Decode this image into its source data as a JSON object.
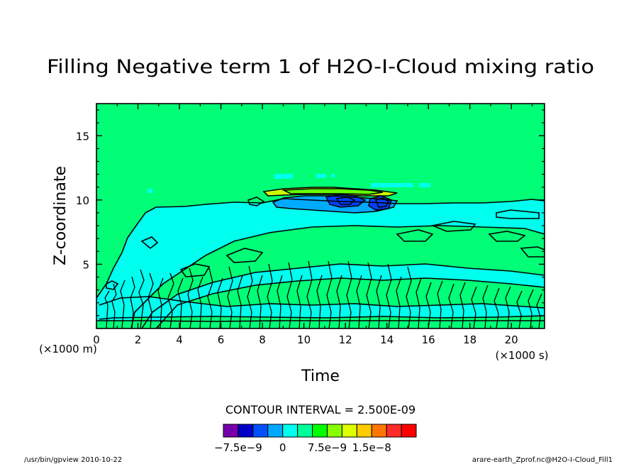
{
  "chart_data": {
    "type": "contour",
    "title": "Filling Negative term 1 of H2O-I-Cloud mixing ratio",
    "xlabel": "Time",
    "ylabel": "Z-coordinate",
    "x_unit_label": "(×1000 s)",
    "y_unit_label": "(×1000 m)",
    "xlim": [
      0,
      21.6
    ],
    "ylim": [
      0,
      17.5
    ],
    "x_ticks": [
      0,
      2,
      4,
      6,
      8,
      10,
      12,
      14,
      16,
      18,
      20
    ],
    "y_ticks": [
      5,
      10,
      15
    ],
    "contour_interval_text": "CONTOUR INTERVAL = 2.500E-09",
    "colorbar": {
      "colors": [
        "#7700aa",
        "#0000c8",
        "#0050ff",
        "#00a8ff",
        "#00ffee",
        "#00ff99",
        "#00ff00",
        "#88ff00",
        "#ddff00",
        "#ffcc00",
        "#ff7700",
        "#ff2a2a",
        "#ff0000"
      ],
      "tick_labels": [
        "−7.5e−9",
        "0",
        "7.5e−9",
        "1.5e−8"
      ],
      "tick_values": [
        -7.5e-09,
        0,
        7.5e-09,
        1.5e-08
      ]
    },
    "regions": [
      {
        "name": "background",
        "level": 0,
        "color": "#00ff77"
      },
      {
        "name": "negative-band",
        "level": -2.5e-09,
        "color": "#00ffee"
      },
      {
        "name": "negative-core",
        "level": -5e-09,
        "color": "#00aaff"
      },
      {
        "name": "strong-negative-core",
        "level": -7.5e-09,
        "color": "#0040ff"
      },
      {
        "name": "positive-cap",
        "level": 5e-09,
        "color": "#ccff00"
      }
    ]
  },
  "footer": {
    "left": "/usr/bin/gpview   2010-10-22",
    "right": "arare-earth_Zprof.nc@H2O-I-Cloud_Fill1"
  }
}
